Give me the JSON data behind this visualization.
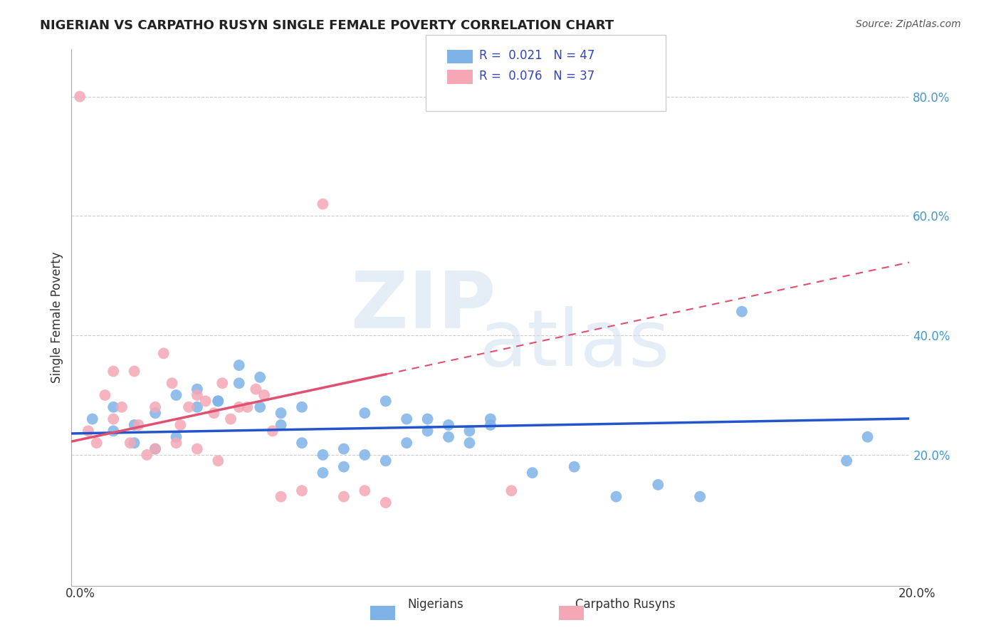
{
  "title": "NIGERIAN VS CARPATHO RUSYN SINGLE FEMALE POVERTY CORRELATION CHART",
  "source": "Source: ZipAtlas.com",
  "ylabel": "Single Female Poverty",
  "right_yticks": [
    0.2,
    0.4,
    0.6,
    0.8
  ],
  "right_ytick_labels": [
    "20.0%",
    "40.0%",
    "60.0%",
    "80.0%"
  ],
  "xlim": [
    0.0,
    0.2
  ],
  "ylim": [
    -0.02,
    0.88
  ],
  "blue_R": "0.021",
  "blue_N": "47",
  "pink_R": "0.076",
  "pink_N": "37",
  "blue_color": "#7fb3e8",
  "pink_color": "#f4a7b5",
  "blue_line_color": "#2255cc",
  "pink_line_color": "#e05070",
  "grid_color": "#cccccc",
  "background_color": "#ffffff",
  "blue_scatter_x": [
    0.005,
    0.01,
    0.015,
    0.02,
    0.025,
    0.03,
    0.035,
    0.04,
    0.045,
    0.05,
    0.055,
    0.06,
    0.065,
    0.07,
    0.075,
    0.08,
    0.085,
    0.09,
    0.095,
    0.1,
    0.01,
    0.015,
    0.02,
    0.025,
    0.03,
    0.035,
    0.04,
    0.045,
    0.05,
    0.055,
    0.06,
    0.065,
    0.07,
    0.075,
    0.08,
    0.085,
    0.09,
    0.095,
    0.1,
    0.11,
    0.12,
    0.13,
    0.14,
    0.15,
    0.16,
    0.185,
    0.19
  ],
  "blue_scatter_y": [
    0.26,
    0.28,
    0.25,
    0.27,
    0.3,
    0.28,
    0.29,
    0.32,
    0.28,
    0.25,
    0.22,
    0.2,
    0.21,
    0.27,
    0.29,
    0.26,
    0.24,
    0.23,
    0.22,
    0.25,
    0.24,
    0.22,
    0.21,
    0.23,
    0.31,
    0.29,
    0.35,
    0.33,
    0.27,
    0.28,
    0.17,
    0.18,
    0.2,
    0.19,
    0.22,
    0.26,
    0.25,
    0.24,
    0.26,
    0.17,
    0.18,
    0.13,
    0.15,
    0.13,
    0.44,
    0.19,
    0.23
  ],
  "pink_scatter_x": [
    0.002,
    0.004,
    0.006,
    0.008,
    0.01,
    0.012,
    0.014,
    0.016,
    0.018,
    0.02,
    0.022,
    0.024,
    0.026,
    0.028,
    0.03,
    0.032,
    0.034,
    0.036,
    0.038,
    0.04,
    0.042,
    0.044,
    0.046,
    0.048,
    0.05,
    0.055,
    0.06,
    0.065,
    0.07,
    0.075,
    0.01,
    0.015,
    0.02,
    0.025,
    0.03,
    0.035,
    0.105
  ],
  "pink_scatter_y": [
    0.8,
    0.24,
    0.22,
    0.3,
    0.26,
    0.28,
    0.22,
    0.25,
    0.2,
    0.21,
    0.37,
    0.32,
    0.25,
    0.28,
    0.3,
    0.29,
    0.27,
    0.32,
    0.26,
    0.28,
    0.28,
    0.31,
    0.3,
    0.24,
    0.13,
    0.14,
    0.62,
    0.13,
    0.14,
    0.12,
    0.34,
    0.34,
    0.28,
    0.22,
    0.21,
    0.19,
    0.14
  ]
}
